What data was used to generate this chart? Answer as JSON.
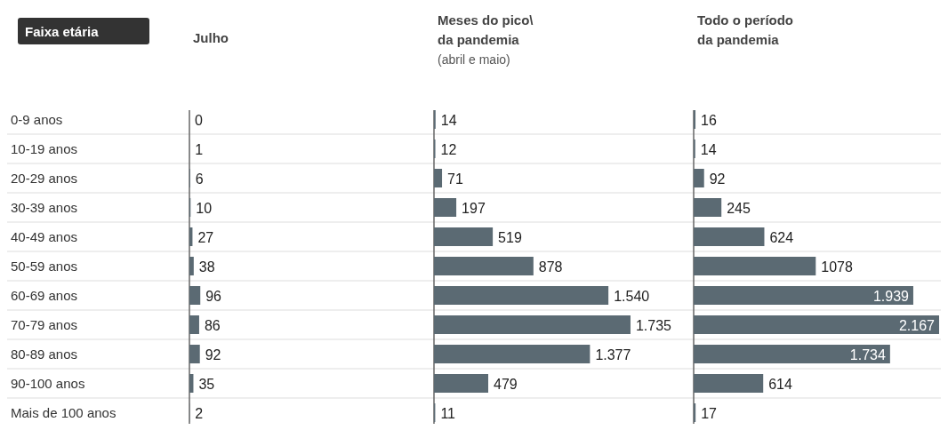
{
  "chart_data": [
    {
      "type": "bar",
      "orientation": "horizontal",
      "title": "Julho",
      "ylabel": "Faixa etária",
      "categories": [
        "0-9 anos",
        "10-19 anos",
        "20-29 anos",
        "30-39 anos",
        "40-49 anos",
        "50-59 anos",
        "60-69 anos",
        "70-79 anos",
        "80-89 anos",
        "90-100 anos",
        "Mais de 100 anos"
      ],
      "values": [
        0,
        1,
        6,
        10,
        27,
        38,
        96,
        86,
        92,
        35,
        2
      ],
      "value_labels": [
        "0",
        "1",
        "6",
        "10",
        "27",
        "38",
        "96",
        "86",
        "92",
        "35",
        "2"
      ],
      "color": "#5b6a73",
      "tick_labels": "y"
    },
    {
      "type": "bar",
      "orientation": "horizontal",
      "title": "Meses do pico\\\nda pandemia",
      "subtitle": "(abril e maio)",
      "values": [
        14,
        12,
        71,
        197,
        519,
        878,
        1540,
        1735,
        1377,
        479,
        11
      ],
      "value_labels": [
        "14",
        "12",
        "71",
        "197",
        "519",
        "878",
        "1.540",
        "1.735",
        "1.377",
        "479",
        "11"
      ],
      "color": "#5b6a73",
      "tick_labels": false
    },
    {
      "type": "bar",
      "orientation": "horizontal",
      "title": "Todo o período\nda pandemia",
      "values": [
        16,
        14,
        92,
        245,
        624,
        1078,
        1939,
        2167,
        1734,
        614,
        17
      ],
      "value_labels": [
        "16",
        "14",
        "92",
        "245",
        "624",
        "1078",
        "1.939",
        "2.167",
        "1.734",
        "614",
        "17"
      ],
      "color": "#5b6a73",
      "tick_labels": false
    }
  ]
}
